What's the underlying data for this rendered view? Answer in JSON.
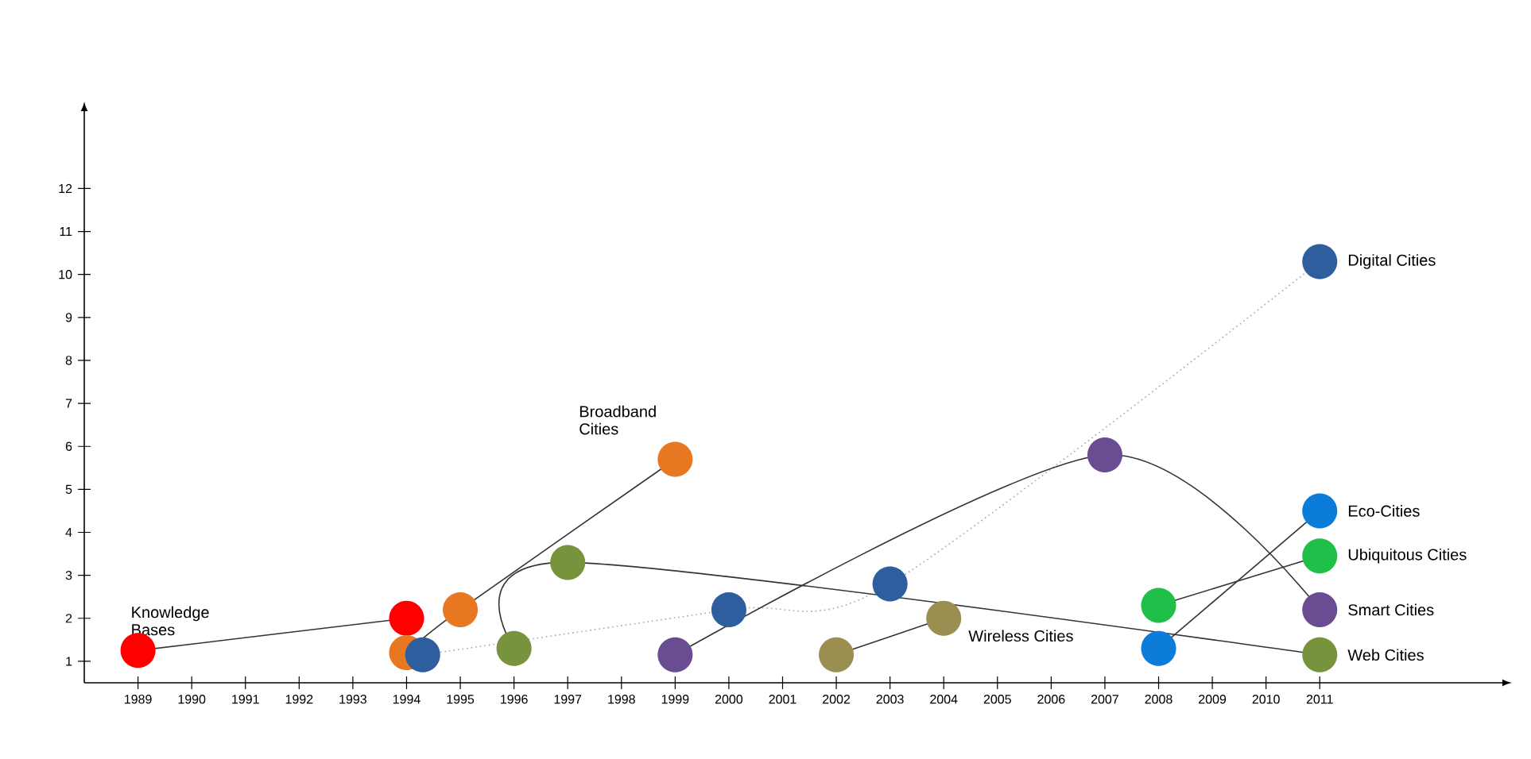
{
  "chart_data": {
    "type": "line",
    "marker": "circle",
    "grid": false,
    "xlim": [
      1988,
      2014.4
    ],
    "ylim": [
      0.5,
      13.8
    ],
    "xticks": [
      1989,
      1990,
      1991,
      1992,
      1993,
      1994,
      1995,
      1996,
      1997,
      1998,
      1999,
      2000,
      2001,
      2002,
      2003,
      2004,
      2005,
      2006,
      2007,
      2008,
      2009,
      2010,
      2011
    ],
    "yticks": [
      1,
      2,
      3,
      4,
      5,
      6,
      7,
      8,
      9,
      10,
      11,
      12
    ],
    "series": [
      {
        "name": "Knowledge Bases",
        "color": "#ff0000",
        "x": [
          1989,
          1994
        ],
        "values": [
          1.25,
          2.0
        ]
      },
      {
        "name": "Broadband Cities",
        "color": "#e87722",
        "x": [
          1994,
          1995,
          1999
        ],
        "values": [
          1.2,
          2.2,
          5.7
        ]
      },
      {
        "name": "Digital Cities",
        "color": "#2e5e9e",
        "line_style": "dotted",
        "x": [
          1994.3,
          2000,
          2003,
          2011
        ],
        "values": [
          1.15,
          2.2,
          2.8,
          10.3
        ]
      },
      {
        "name": "Web Cities",
        "color": "#77933c",
        "x": [
          1996,
          1997,
          2011
        ],
        "values": [
          1.3,
          3.3,
          1.15
        ]
      },
      {
        "name": "Smart Cities",
        "color": "#6a4c93",
        "x": [
          1999,
          2007,
          2011
        ],
        "values": [
          1.15,
          5.8,
          2.2
        ]
      },
      {
        "name": "Wireless Cities",
        "color": "#9a8f50",
        "x": [
          2002,
          2004
        ],
        "values": [
          1.15,
          2.0
        ]
      },
      {
        "name": "Eco-Cities",
        "color": "#0b7dd8",
        "x": [
          2008,
          2011
        ],
        "values": [
          1.3,
          4.5
        ]
      },
      {
        "name": "Ubiquitous Cities",
        "color": "#1fbf4a",
        "x": [
          2008,
          2011
        ],
        "values": [
          2.3,
          3.45
        ]
      }
    ]
  }
}
